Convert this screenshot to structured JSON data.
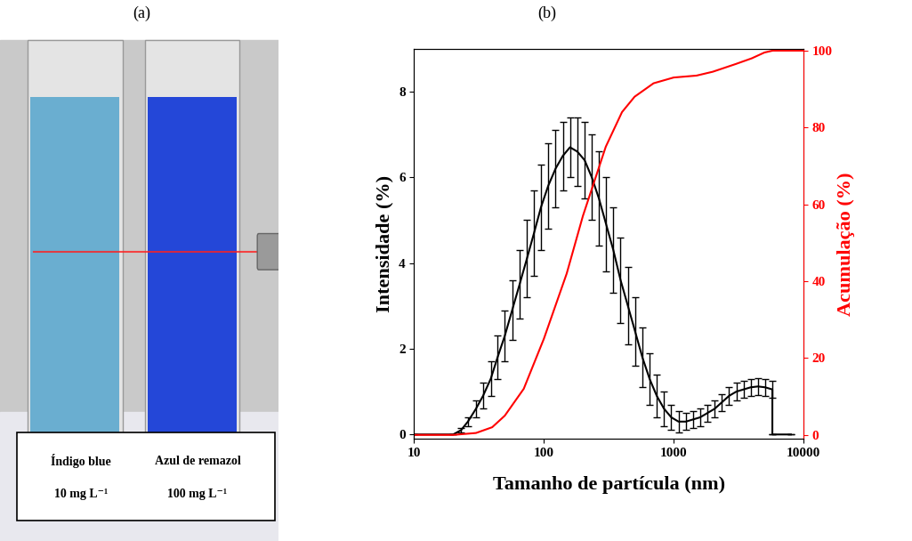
{
  "photo": {
    "label": "(a)",
    "tubes": [
      {
        "name": "Índigo blue",
        "concentration": "10 mg L⁻¹",
        "color": "#6aaed0"
      },
      {
        "name": "Azul de remazol",
        "concentration": "100 mg L⁻¹",
        "color": "#2447d8"
      }
    ]
  },
  "chart_data": {
    "panel_label": "(b)",
    "type": "line",
    "x_label": "Tamanho de partícula (nm)",
    "y_label": "Intensidade (%)",
    "y2_label": "Acumulação (%)",
    "log": "x",
    "xlim": [
      10,
      10000
    ],
    "xticks": [
      10,
      100,
      1000,
      10000
    ],
    "ylim": [
      -0.1,
      9.0
    ],
    "yticks": [
      0,
      2,
      4,
      6,
      8
    ],
    "y2lim": [
      -1,
      100.5
    ],
    "y2ticks": [
      0,
      20,
      40,
      60,
      80,
      100
    ],
    "series": [
      {
        "color": "#000000",
        "type": "line",
        "x": [
          10,
          20,
          23,
          26,
          30,
          34,
          39,
          44,
          50,
          57,
          65,
          74,
          84,
          95,
          108,
          123,
          140,
          159,
          181,
          206,
          234,
          266,
          302,
          343,
          390,
          444,
          505,
          574,
          652,
          741,
          843,
          958,
          1090,
          1240,
          1410,
          1600,
          1820,
          2070,
          2350,
          2670,
          3040,
          3450,
          3920,
          4460,
          5070,
          5760,
          5760,
          8000
        ],
        "values": [
          0,
          0,
          0.1,
          0.3,
          0.6,
          0.9,
          1.3,
          1.8,
          2.3,
          2.9,
          3.5,
          4.1,
          4.7,
          5.3,
          5.8,
          6.2,
          6.5,
          6.7,
          6.6,
          6.4,
          6.0,
          5.5,
          4.9,
          4.3,
          3.6,
          3.0,
          2.4,
          1.8,
          1.3,
          0.9,
          0.6,
          0.4,
          0.3,
          0.3,
          0.35,
          0.4,
          0.5,
          0.6,
          0.75,
          0.9,
          1.0,
          1.05,
          1.1,
          1.12,
          1.1,
          1.05,
          0,
          0
        ],
        "errors": [
          0,
          0,
          0.05,
          0.1,
          0.2,
          0.3,
          0.4,
          0.5,
          0.6,
          0.7,
          0.8,
          0.9,
          1.0,
          1.0,
          1.0,
          0.9,
          0.8,
          0.7,
          0.8,
          0.9,
          1.0,
          1.1,
          1.1,
          1.0,
          1.0,
          0.9,
          0.8,
          0.7,
          0.6,
          0.5,
          0.4,
          0.3,
          0.25,
          0.2,
          0.2,
          0.2,
          0.2,
          0.2,
          0.2,
          0.2,
          0.2,
          0.2,
          0.2,
          0.2,
          0.2,
          0.2,
          0,
          0
        ]
      },
      {
        "color": "#ff0000",
        "type": "line",
        "axis": "y2",
        "x": [
          10,
          20,
          30,
          40,
          50,
          70,
          100,
          150,
          200,
          300,
          400,
          500,
          700,
          1000,
          1500,
          2000,
          3000,
          4000,
          5000,
          5800,
          10000
        ],
        "values": [
          0,
          0,
          0.5,
          2,
          5,
          12,
          25,
          42,
          57,
          75,
          84,
          88,
          91.5,
          93,
          93.5,
          94.5,
          96.5,
          98,
          99.5,
          100,
          100
        ]
      }
    ]
  }
}
